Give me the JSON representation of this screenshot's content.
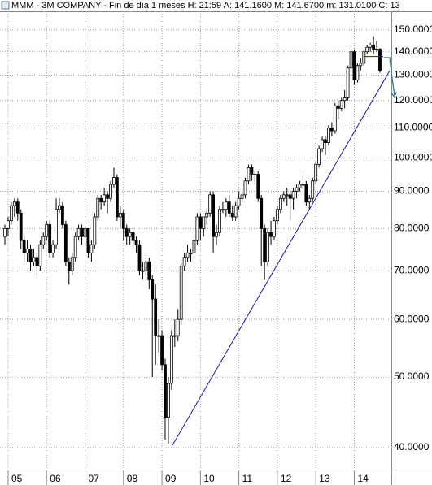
{
  "chart_data": {
    "type": "candlestick",
    "title": "MMM - 3M COMPANY - Fin de día 1 meses  H: 21:59  A: 141.1600  M: 141.6700  m: 131.0100  C: 13",
    "log_scale": true,
    "grid": true,
    "up_color": "#ffffff",
    "down_color": "#000000",
    "line_color": "#000000",
    "categories": [
      null,
      "05",
      null,
      null,
      null,
      null,
      null,
      null,
      null,
      null,
      null,
      null,
      null,
      "06",
      null,
      null,
      null,
      null,
      null,
      null,
      null,
      null,
      null,
      null,
      null,
      "07",
      null,
      null,
      null,
      null,
      null,
      null,
      null,
      null,
      null,
      null,
      null,
      "08",
      null,
      null,
      null,
      null,
      null,
      null,
      null,
      null,
      null,
      null,
      null,
      "09",
      null,
      null,
      null,
      null,
      null,
      null,
      null,
      null,
      null,
      null,
      null,
      "10",
      null,
      null,
      null,
      null,
      null,
      null,
      null,
      null,
      null,
      null,
      null,
      "11",
      null,
      null,
      null,
      null,
      null,
      null,
      null,
      null,
      null,
      null,
      null,
      "12",
      null,
      null,
      null,
      null,
      null,
      null,
      null,
      null,
      null,
      null,
      null,
      "13",
      null,
      null,
      null,
      null,
      null,
      null,
      null,
      null,
      null,
      null,
      null,
      "14",
      null,
      null,
      null,
      null,
      null,
      null,
      null,
      null
    ],
    "ohlc": [
      [
        78,
        81,
        76,
        80
      ],
      [
        80,
        83,
        78,
        82
      ],
      [
        82,
        87,
        81,
        86
      ],
      [
        86,
        88,
        83,
        87
      ],
      [
        87,
        88,
        82,
        84
      ],
      [
        84,
        85,
        75,
        77
      ],
      [
        77,
        78,
        72,
        74
      ],
      [
        74,
        77,
        72,
        75
      ],
      [
        75,
        76,
        70,
        72
      ],
      [
        72,
        75,
        71,
        73
      ],
      [
        73,
        74,
        69,
        71
      ],
      [
        71,
        77,
        70,
        76
      ],
      [
        76,
        79,
        75,
        78
      ],
      [
        78,
        82,
        77,
        81
      ],
      [
        81,
        82,
        73,
        74
      ],
      [
        74,
        77,
        73,
        76
      ],
      [
        76,
        88,
        75,
        85
      ],
      [
        85,
        88,
        84,
        86
      ],
      [
        86,
        87,
        80,
        81
      ],
      [
        81,
        82,
        71,
        72
      ],
      [
        72,
        73,
        67,
        70
      ],
      [
        70,
        74,
        69,
        73
      ],
      [
        73,
        79,
        72,
        78
      ],
      [
        78,
        81,
        77,
        80
      ],
      [
        80,
        81,
        76,
        78
      ],
      [
        78,
        81,
        77,
        80
      ],
      [
        80,
        80,
        73,
        74
      ],
      [
        74,
        77,
        72,
        76
      ],
      [
        76,
        84,
        75,
        83
      ],
      [
        83,
        89,
        82,
        88
      ],
      [
        88,
        89,
        85,
        87
      ],
      [
        87,
        91,
        86,
        89
      ],
      [
        89,
        90,
        84,
        88
      ],
      [
        88,
        93,
        87,
        92
      ],
      [
        92,
        97,
        91,
        94
      ],
      [
        94,
        95,
        82,
        83
      ],
      [
        83,
        86,
        80,
        84
      ],
      [
        84,
        85,
        77,
        80
      ],
      [
        80,
        81,
        76,
        78
      ],
      [
        78,
        80,
        76,
        79
      ],
      [
        79,
        80,
        75,
        77
      ],
      [
        77,
        78,
        74,
        76
      ],
      [
        76,
        77,
        69,
        70
      ],
      [
        70,
        72,
        68,
        70
      ],
      [
        70,
        73,
        69,
        72
      ],
      [
        72,
        73,
        66,
        68
      ],
      [
        68,
        69,
        50,
        64
      ],
      [
        64,
        67,
        52,
        57
      ],
      [
        57,
        60,
        54,
        57
      ],
      [
        57,
        58,
        51,
        52
      ],
      [
        52,
        53,
        41,
        44
      ],
      [
        44,
        50,
        40.5,
        49
      ],
      [
        49,
        58,
        48,
        57
      ],
      [
        57,
        60,
        55,
        57
      ],
      [
        57,
        62,
        56,
        60
      ],
      [
        60,
        72,
        59,
        71
      ],
      [
        71,
        74,
        70,
        73
      ],
      [
        73,
        76,
        72,
        74
      ],
      [
        74,
        75,
        72,
        74
      ],
      [
        74,
        79,
        73,
        77
      ],
      [
        77,
        84,
        76,
        83
      ],
      [
        83,
        84,
        77,
        80
      ],
      [
        80,
        83,
        78,
        83
      ],
      [
        83,
        85,
        81,
        84
      ],
      [
        84,
        90,
        83,
        89
      ],
      [
        89,
        90,
        74,
        78
      ],
      [
        78,
        81,
        76,
        79
      ],
      [
        79,
        86,
        78,
        85
      ],
      [
        85,
        87,
        84,
        85
      ],
      [
        85,
        88,
        83,
        87
      ],
      [
        87,
        89,
        83,
        84
      ],
      [
        84,
        86,
        82,
        83
      ],
      [
        83,
        87,
        82,
        86
      ],
      [
        86,
        90,
        85,
        88
      ],
      [
        88,
        91,
        87,
        89
      ],
      [
        89,
        94,
        88,
        93
      ],
      [
        93,
        98,
        92,
        97
      ],
      [
        97,
        98,
        93,
        95
      ],
      [
        95,
        96,
        92,
        95
      ],
      [
        95,
        96,
        87,
        88
      ],
      [
        88,
        89,
        71,
        80
      ],
      [
        80,
        81,
        68,
        72
      ],
      [
        72,
        80,
        71,
        79
      ],
      [
        79,
        82,
        76,
        78
      ],
      [
        78,
        83,
        77,
        82
      ],
      [
        82,
        86,
        81,
        85
      ],
      [
        85,
        89,
        84,
        88
      ],
      [
        88,
        90,
        87,
        89
      ],
      [
        89,
        91,
        86,
        89
      ],
      [
        89,
        90,
        82,
        88
      ],
      [
        88,
        91,
        85,
        90
      ],
      [
        90,
        92,
        88,
        91
      ],
      [
        91,
        93,
        90,
        92
      ],
      [
        92,
        95,
        91,
        92
      ],
      [
        92,
        93,
        86,
        87
      ],
      [
        87,
        89,
        85,
        88
      ],
      [
        88,
        94,
        87,
        93
      ],
      [
        93,
        99,
        92,
        98
      ],
      [
        98,
        104,
        97,
        103
      ],
      [
        103,
        107,
        102,
        106
      ],
      [
        106,
        107,
        101,
        105
      ],
      [
        105,
        111,
        104,
        110
      ],
      [
        110,
        112,
        107,
        109
      ],
      [
        109,
        119,
        108,
        118
      ],
      [
        118,
        120,
        113,
        117
      ],
      [
        117,
        121,
        116,
        120
      ],
      [
        120,
        124,
        117,
        121
      ],
      [
        121,
        134,
        120,
        133
      ],
      [
        133,
        141,
        131,
        140
      ],
      [
        140,
        141,
        126,
        128
      ],
      [
        128,
        135,
        127,
        134
      ],
      [
        134,
        137,
        132,
        135
      ],
      [
        135,
        141,
        134,
        140
      ],
      [
        140,
        143,
        139,
        142
      ],
      [
        142,
        144,
        140,
        143
      ],
      [
        143,
        147,
        139,
        141
      ],
      [
        141,
        145,
        140,
        141.16
      ],
      [
        141.16,
        141.67,
        131.01,
        132
      ]
    ],
    "trendlines": [
      {
        "color": "#1a1aa0",
        "x": [
          52.3,
          120
        ],
        "values": [
          40.3,
          131.7
        ]
      },
      {
        "color": "#1a1aa0",
        "x": [
          112,
          118
        ],
        "values": [
          137.9,
          137.9
        ]
      }
    ],
    "ylim": [
      37.3,
      159.1
    ],
    "yticks": [
      {
        "value": 150,
        "label": "150.0000"
      },
      {
        "value": 140,
        "label": "140.0000"
      },
      {
        "value": 130,
        "label": "130.0000"
      },
      {
        "value": 120,
        "label": "120.0000"
      },
      {
        "value": 110,
        "label": "110.0000"
      },
      {
        "value": 100,
        "label": "100.0000"
      },
      {
        "value": 90,
        "label": "90.0000"
      },
      {
        "value": 80,
        "label": "80.0000"
      },
      {
        "value": 70,
        "label": "70.0000"
      },
      {
        "value": 60,
        "label": "60.0000"
      },
      {
        "value": 50,
        "label": "50.0000"
      },
      {
        "value": 40,
        "label": "40.0000"
      }
    ]
  }
}
